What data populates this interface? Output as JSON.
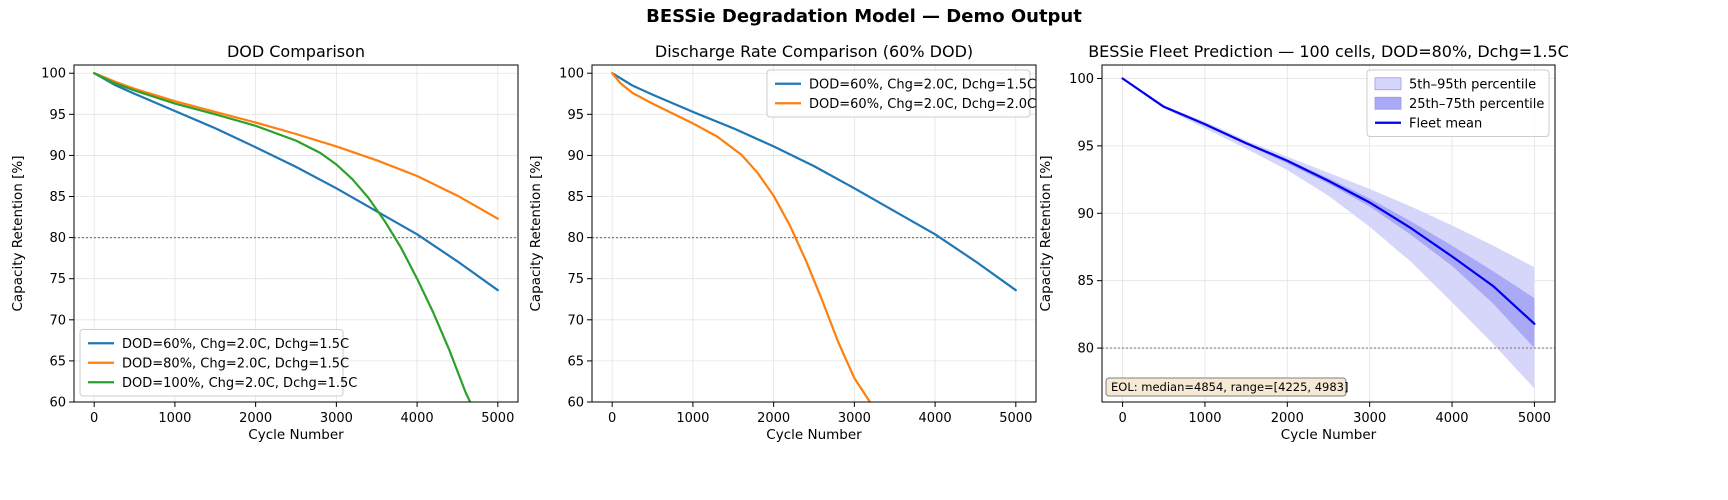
{
  "suptitle": "BESSie Degradation Model — Demo Output",
  "colors": {
    "blue": "#1f77b4",
    "orange": "#ff7f0e",
    "green": "#2ca02c",
    "fleet_mean": "#0000ee",
    "band_outer": "#d6d6fb",
    "band_inner": "#a9a9f6",
    "eol_box_fill": "#f6ead5"
  },
  "chart_data": [
    {
      "type": "line",
      "title": "DOD Comparison",
      "xlabel": "Cycle Number",
      "ylabel": "Capacity Retention [%]",
      "xlim": [
        -250,
        5250
      ],
      "ylim": [
        60,
        101
      ],
      "xticks": [
        0,
        1000,
        2000,
        3000,
        4000,
        5000
      ],
      "yticks": [
        60,
        65,
        70,
        75,
        80,
        85,
        90,
        95,
        100
      ],
      "grid": true,
      "reference_line": 80,
      "legend_position": "lower-left",
      "series": [
        {
          "name": "DOD=60%, Chg=2.0C, Dchg=1.5C",
          "color": "blue",
          "x": [
            0,
            250,
            500,
            1000,
            1500,
            2000,
            2500,
            3000,
            3500,
            4000,
            4500,
            5000
          ],
          "y": [
            100,
            98.6,
            97.5,
            95.4,
            93.3,
            91.0,
            88.6,
            86.0,
            83.2,
            80.4,
            77.1,
            73.6
          ]
        },
        {
          "name": "DOD=80%, Chg=2.0C, Dchg=1.5C",
          "color": "orange",
          "x": [
            0,
            250,
            500,
            1000,
            1500,
            2000,
            2500,
            3000,
            3500,
            4000,
            4500,
            5000
          ],
          "y": [
            100,
            99.0,
            98.1,
            96.6,
            95.3,
            94.0,
            92.6,
            91.1,
            89.4,
            87.5,
            85.1,
            82.3
          ]
        },
        {
          "name": "DOD=100%, Chg=2.0C, Dchg=1.5C",
          "color": "green",
          "x": [
            0,
            250,
            500,
            1000,
            1500,
            2000,
            2500,
            2800,
            3000,
            3200,
            3400,
            3600,
            3800,
            4000,
            4200,
            4400,
            4600,
            4680
          ],
          "y": [
            100,
            98.8,
            97.9,
            96.3,
            95.0,
            93.6,
            91.8,
            90.3,
            88.9,
            87.1,
            84.8,
            82.0,
            78.8,
            75.0,
            70.9,
            66.3,
            61.2,
            59.5
          ]
        }
      ]
    },
    {
      "type": "line",
      "title": "Discharge Rate Comparison (60% DOD)",
      "xlabel": "Cycle Number",
      "ylabel": "Capacity Retention [%]",
      "xlim": [
        -250,
        5250
      ],
      "ylim": [
        60,
        101
      ],
      "xticks": [
        0,
        1000,
        2000,
        3000,
        4000,
        5000
      ],
      "yticks": [
        60,
        65,
        70,
        75,
        80,
        85,
        90,
        95,
        100
      ],
      "grid": true,
      "reference_line": 80,
      "legend_position": "upper-right",
      "series": [
        {
          "name": "DOD=60%, Chg=2.0C, Dchg=1.5C",
          "color": "blue",
          "x": [
            0,
            250,
            500,
            1000,
            1500,
            2000,
            2500,
            3000,
            3500,
            4000,
            4500,
            5000
          ],
          "y": [
            100,
            98.5,
            97.4,
            95.3,
            93.3,
            91.1,
            88.7,
            86.0,
            83.2,
            80.4,
            77.1,
            73.6
          ]
        },
        {
          "name": "DOD=60%, Chg=2.0C, Dchg=2.0C",
          "color": "orange",
          "x": [
            0,
            100,
            250,
            500,
            1000,
            1300,
            1600,
            1800,
            2000,
            2200,
            2400,
            2600,
            2800,
            3000,
            3200,
            3220
          ],
          "y": [
            100,
            98.8,
            97.6,
            96.3,
            93.9,
            92.3,
            90.1,
            87.9,
            85.1,
            81.5,
            77.2,
            72.4,
            67.3,
            62.9,
            59.9,
            59.6
          ]
        }
      ]
    },
    {
      "type": "area",
      "title": "BESSie Fleet Prediction — 100 cells, DOD=80%, Dchg=1.5C",
      "xlabel": "Cycle Number",
      "ylabel": "Capacity Retention [%]",
      "xlim": [
        -250,
        5250
      ],
      "ylim": [
        76,
        101
      ],
      "xticks": [
        0,
        1000,
        2000,
        3000,
        4000,
        5000
      ],
      "yticks": [
        80,
        85,
        90,
        95,
        100
      ],
      "grid": true,
      "reference_line": 80,
      "legend_position": "upper-right",
      "x": [
        0,
        500,
        1000,
        1500,
        2000,
        2500,
        3000,
        3500,
        4000,
        4500,
        5000
      ],
      "bands": [
        {
          "name": "5th–95th percentile",
          "color": "band_outer",
          "lower": [
            100,
            97.8,
            96.3,
            94.8,
            93.2,
            91.3,
            89.0,
            86.4,
            83.4,
            80.3,
            77.0
          ],
          "upper": [
            100,
            98.0,
            96.8,
            95.4,
            94.2,
            93.0,
            91.8,
            90.5,
            89.1,
            87.6,
            86.0
          ]
        },
        {
          "name": "25th–75th percentile",
          "color": "band_inner",
          "lower": [
            100,
            97.9,
            96.5,
            95.1,
            93.7,
            92.2,
            90.5,
            88.4,
            86.1,
            83.3,
            80.0
          ],
          "upper": [
            100,
            98.0,
            96.7,
            95.3,
            94.0,
            92.6,
            91.1,
            89.4,
            87.6,
            85.7,
            83.7
          ]
        }
      ],
      "series": [
        {
          "name": "Fleet mean",
          "color": "fleet_mean",
          "x": [
            0,
            500,
            1000,
            1500,
            2000,
            2500,
            3000,
            3500,
            4000,
            4500,
            5000
          ],
          "y": [
            100,
            97.9,
            96.6,
            95.2,
            93.9,
            92.4,
            90.8,
            88.9,
            86.8,
            84.6,
            81.8
          ]
        }
      ],
      "annotation": "EOL: median=4854, range=[4225, 4983]"
    }
  ]
}
